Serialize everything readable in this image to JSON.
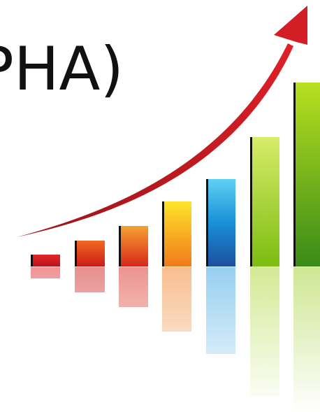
{
  "text": "PHA)"
}
